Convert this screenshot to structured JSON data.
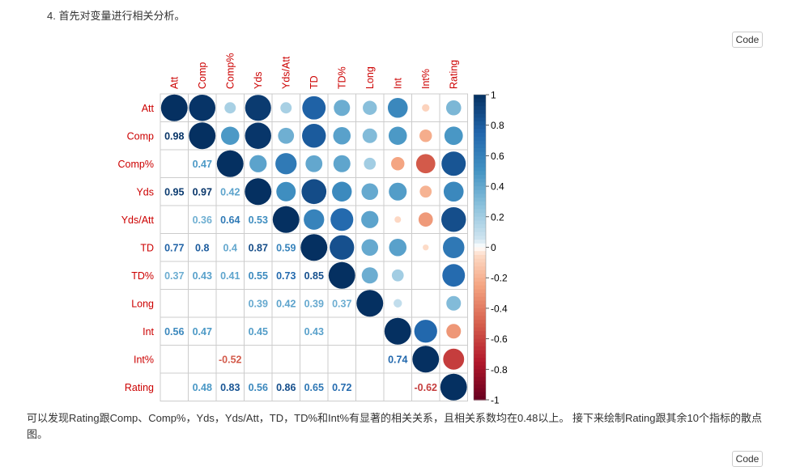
{
  "heading": "4. 首先对变量进行相关分析。",
  "code_button_label": "Code",
  "paragraph": "可以发现Rating跟Comp、Comp%，Yds，Yds/Att，TD，TD%和Int%有显著的相关关系，且相关系数均在0.48以上。 接下来绘制Rating跟其余10个指标的散点图。",
  "colors": {
    "label_red": "#CC0000",
    "grid": "#cccccc",
    "text": "#333333"
  },
  "chart_data": {
    "type": "heatmap",
    "variables": [
      "Att",
      "Comp",
      "Comp%",
      "Yds",
      "Yds/Att",
      "TD",
      "TD%",
      "Long",
      "Int",
      "Int%",
      "Rating"
    ],
    "upper_method": "circle",
    "lower_method": "number (only significant values shown)",
    "matrix": [
      [
        1,
        0.98,
        0.18,
        0.95,
        0.18,
        0.77,
        0.37,
        0.28,
        0.56,
        -0.08,
        0.32
      ],
      [
        0.98,
        1,
        0.47,
        0.97,
        0.36,
        0.8,
        0.43,
        0.3,
        0.47,
        -0.22,
        0.48
      ],
      [
        0.18,
        0.47,
        1,
        0.42,
        0.64,
        0.4,
        0.41,
        0.2,
        -0.25,
        -0.52,
        0.83
      ],
      [
        0.95,
        0.97,
        0.42,
        1,
        0.53,
        0.87,
        0.55,
        0.39,
        0.45,
        -0.2,
        0.56
      ],
      [
        0.18,
        0.36,
        0.64,
        0.53,
        1,
        0.59,
        0.73,
        0.42,
        -0.06,
        -0.29,
        0.86
      ],
      [
        0.77,
        0.8,
        0.4,
        0.87,
        0.59,
        1,
        0.85,
        0.39,
        0.43,
        -0.05,
        0.65
      ],
      [
        0.37,
        0.43,
        0.41,
        0.55,
        0.73,
        0.85,
        1,
        0.37,
        0.2,
        0,
        0.72
      ],
      [
        0.28,
        0.3,
        0.2,
        0.39,
        0.42,
        0.39,
        0.37,
        1,
        0.1,
        0,
        0.3
      ],
      [
        0.56,
        0.47,
        -0.25,
        0.45,
        -0.06,
        0.43,
        0.2,
        0.1,
        1,
        0.74,
        -0.3
      ],
      [
        -0.08,
        -0.22,
        -0.52,
        -0.2,
        -0.29,
        -0.05,
        0,
        0,
        0.74,
        1,
        -0.62
      ],
      [
        0.32,
        0.48,
        0.83,
        0.56,
        0.86,
        0.65,
        0.72,
        0.3,
        -0.3,
        -0.62,
        1
      ]
    ],
    "lower_labels": [
      [],
      [
        [
          0,
          "0.98"
        ]
      ],
      [
        [
          1,
          "0.47"
        ]
      ],
      [
        [
          0,
          "0.95"
        ],
        [
          1,
          "0.97"
        ],
        [
          2,
          "0.42"
        ]
      ],
      [
        [
          1,
          "0.36"
        ],
        [
          2,
          "0.64"
        ],
        [
          3,
          "0.53"
        ]
      ],
      [
        [
          0,
          "0.77"
        ],
        [
          1,
          "0.8"
        ],
        [
          2,
          "0.4"
        ],
        [
          3,
          "0.87"
        ],
        [
          4,
          "0.59"
        ]
      ],
      [
        [
          0,
          "0.37"
        ],
        [
          1,
          "0.43"
        ],
        [
          2,
          "0.41"
        ],
        [
          3,
          "0.55"
        ],
        [
          4,
          "0.73"
        ],
        [
          5,
          "0.85"
        ]
      ],
      [
        [
          3,
          "0.39"
        ],
        [
          4,
          "0.42"
        ],
        [
          5,
          "0.39"
        ],
        [
          6,
          "0.37"
        ]
      ],
      [
        [
          0,
          "0.56"
        ],
        [
          1,
          "0.47"
        ],
        [
          3,
          "0.45"
        ],
        [
          5,
          "0.43"
        ]
      ],
      [
        [
          2,
          "-0.52"
        ],
        [
          8,
          "0.74"
        ]
      ],
      [
        [
          1,
          "0.48"
        ],
        [
          2,
          "0.83"
        ],
        [
          3,
          "0.56"
        ],
        [
          4,
          "0.86"
        ],
        [
          5,
          "0.65"
        ],
        [
          6,
          "0.72"
        ],
        [
          9,
          "-0.62"
        ]
      ]
    ],
    "colorbar_ticks": [
      "1",
      "0.8",
      "0.6",
      "0.4",
      "0.2",
      "0",
      "-0.2",
      "-0.4",
      "-0.6",
      "-0.8",
      "-1"
    ],
    "colorbar_range": [
      -1,
      1
    ]
  }
}
